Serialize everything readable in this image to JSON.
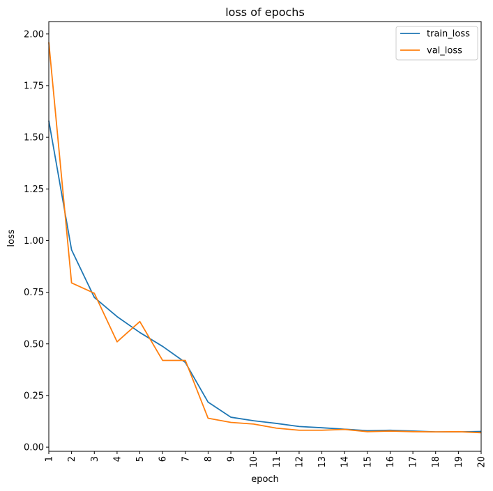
{
  "chart_data": {
    "type": "line",
    "title": "loss of epochs",
    "xlabel": "epoch",
    "ylabel": "loss",
    "x": [
      1,
      2,
      3,
      4,
      5,
      6,
      7,
      8,
      9,
      10,
      11,
      12,
      13,
      14,
      15,
      16,
      17,
      18,
      19,
      20
    ],
    "xlim": [
      1,
      20
    ],
    "ylim": [
      -0.02,
      2.06
    ],
    "yticks": [
      0.0,
      0.25,
      0.5,
      0.75,
      1.0,
      1.25,
      1.5,
      1.75,
      2.0
    ],
    "ytick_labels": [
      "0.00",
      "0.25",
      "0.50",
      "0.75",
      "1.00",
      "1.25",
      "1.50",
      "1.75",
      "2.00"
    ],
    "xtick_labels": [
      "1",
      "2",
      "3",
      "4",
      "5",
      "6",
      "7",
      "8",
      "9",
      "10",
      "11",
      "12",
      "13",
      "14",
      "15",
      "16",
      "17",
      "18",
      "19",
      "20"
    ],
    "grid": false,
    "legend_position": "top-right",
    "series": [
      {
        "name": "train_loss",
        "color": "#1f77b4",
        "values": [
          1.58,
          0.955,
          0.725,
          0.632,
          0.555,
          0.488,
          0.41,
          0.218,
          0.145,
          0.128,
          0.115,
          0.1,
          0.094,
          0.087,
          0.08,
          0.082,
          0.078,
          0.074,
          0.074,
          0.076
        ]
      },
      {
        "name": "val_loss",
        "color": "#ff7f0e",
        "values": [
          1.96,
          0.795,
          0.745,
          0.51,
          0.608,
          0.42,
          0.42,
          0.14,
          0.12,
          0.112,
          0.092,
          0.082,
          0.082,
          0.086,
          0.075,
          0.078,
          0.075,
          0.074,
          0.075,
          0.07
        ]
      }
    ]
  }
}
